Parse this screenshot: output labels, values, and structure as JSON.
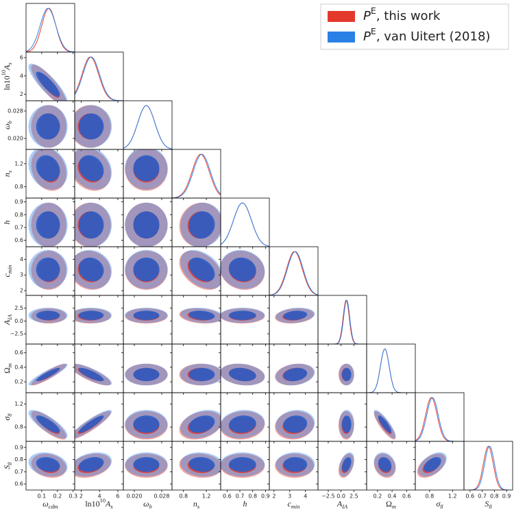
{
  "chart_data": {
    "type": "corner",
    "parameters": [
      {
        "label": [
          {
            "t": "ω",
            "s": "italic"
          },
          {
            "t": "cdm",
            "s": "sub"
          }
        ],
        "lim": [
          0.0,
          0.31
        ],
        "ticks": [
          0.1,
          0.2,
          0.3
        ]
      },
      {
        "label": [
          {
            "t": "ln10",
            "s": "roman"
          },
          {
            "t": "10",
            "s": "sup"
          },
          {
            "t": "A",
            "s": "italic"
          },
          {
            "t": "s",
            "s": "sub"
          }
        ],
        "lim": [
          1.3,
          6.6
        ],
        "ticks": [
          2,
          4,
          6
        ]
      },
      {
        "label": [
          {
            "t": "ω",
            "s": "italic"
          },
          {
            "t": "b",
            "s": "sub"
          }
        ],
        "lim": [
          0.0168,
          0.031
        ],
        "ticks": [
          {
            "value": 0.02,
            "label": "0.020"
          },
          {
            "value": 0.028,
            "label": "0.028"
          }
        ]
      },
      {
        "label": [
          {
            "t": "n",
            "s": "italic"
          },
          {
            "t": "s",
            "s": "sub"
          }
        ],
        "lim": [
          0.6,
          1.45
        ],
        "ticks": [
          0.8,
          1.2
        ]
      },
      {
        "label": [
          {
            "t": "h",
            "s": "italic"
          }
        ],
        "lim": [
          0.55,
          0.93
        ],
        "ticks": [
          0.6,
          0.7,
          0.8,
          0.9
        ]
      },
      {
        "label": [
          {
            "t": "c",
            "s": "italic"
          },
          {
            "t": "min",
            "s": "sub"
          }
        ],
        "lim": [
          1.7,
          4.8
        ],
        "ticks": [
          2,
          3,
          4
        ]
      },
      {
        "label": [
          {
            "t": "A",
            "s": "italic"
          },
          {
            "t": "IA",
            "s": "sub"
          }
        ],
        "lim": [
          -4.5,
          5.0
        ],
        "ticks": [
          {
            "value": -2.5,
            "label": "−2.5"
          },
          {
            "value": 0,
            "label": "0.0"
          },
          {
            "value": 2.5,
            "label": "2.5"
          }
        ]
      },
      {
        "label": [
          {
            "t": "Ω",
            "s": "roman"
          },
          {
            "t": "m",
            "s": "sub"
          }
        ],
        "lim": [
          0.05,
          0.72
        ],
        "ticks": [
          0.2,
          0.4,
          0.6
        ]
      },
      {
        "label": [
          {
            "t": "σ",
            "s": "italic"
          },
          {
            "t": "8",
            "s": "sub"
          }
        ],
        "lim": [
          0.55,
          1.4
        ],
        "ticks": [
          0.8,
          1.2
        ]
      },
      {
        "label": [
          {
            "t": "S",
            "s": "italic"
          },
          {
            "t": "8",
            "s": "sub"
          }
        ],
        "lim": [
          0.55,
          0.95
        ],
        "ticks": [
          0.6,
          0.7,
          0.8,
          0.9
        ]
      }
    ],
    "correlation": [
      [
        -0.85
      ],
      [
        0.0,
        0.0
      ],
      [
        -0.2,
        -0.2,
        0.0
      ],
      [
        0.0,
        0.0,
        0.0,
        0.05
      ],
      [
        0.0,
        -0.1,
        0.0,
        -0.4,
        -0.1
      ],
      [
        0.0,
        0.0,
        0.0,
        -0.2,
        0.0,
        0.2
      ],
      [
        0.9,
        -0.8,
        0.0,
        0.0,
        -0.2,
        0.2,
        0.0
      ],
      [
        -0.8,
        0.9,
        0.0,
        0.3,
        0.1,
        0.1,
        0.0,
        -0.85
      ],
      [
        -0.2,
        0.3,
        0.0,
        -0.1,
        0.0,
        0.0,
        0.4,
        -0.2,
        0.5
      ]
    ],
    "series": [
      {
        "name": [
          {
            "t": "P",
            "s": "italic"
          },
          {
            "t": "E",
            "s": "sup"
          },
          {
            "t": ", this work",
            "s": "roman"
          }
        ],
        "color": "#e3392c",
        "mean": [
          0.145,
          3.0,
          0.0235,
          1.1,
          0.72,
          3.3,
          1.0,
          0.3,
          0.83,
          0.75
        ],
        "sigma": [
          0.045,
          0.9,
          0.0025,
          0.15,
          0.07,
          0.5,
          0.6,
          0.06,
          0.1,
          0.04
        ]
      },
      {
        "name": [
          {
            "t": "P",
            "s": "italic"
          },
          {
            "t": "E",
            "s": "sup"
          },
          {
            "t": ", van Uitert (2018)",
            "s": "roman"
          }
        ],
        "color": "#2b80e6",
        "mean": [
          0.14,
          3.1,
          0.0235,
          1.12,
          0.72,
          3.35,
          1.1,
          0.3,
          0.85,
          0.76
        ],
        "sigma": [
          0.05,
          0.9,
          0.0025,
          0.15,
          0.07,
          0.5,
          0.6,
          0.06,
          0.1,
          0.04
        ]
      }
    ]
  }
}
